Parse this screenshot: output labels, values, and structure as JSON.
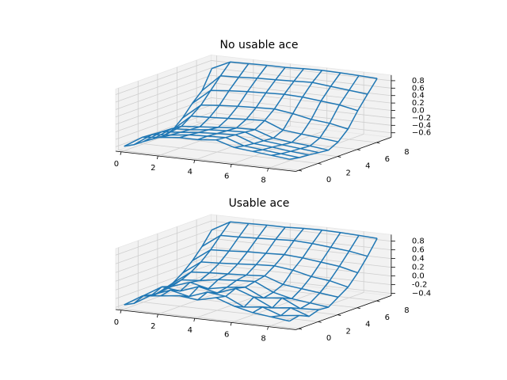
{
  "chart_data": [
    {
      "type": "wireframe",
      "title": "No usable ace",
      "color": "#1f77b4",
      "x": [
        0,
        1,
        2,
        3,
        4,
        5,
        6,
        7,
        8,
        9
      ],
      "y": [
        0,
        1,
        2,
        3,
        4,
        5,
        6,
        7,
        8,
        9
      ],
      "z": [
        [
          -0.6,
          -0.3,
          -0.25,
          -0.2,
          -0.2,
          -0.15,
          -0.3,
          -0.35,
          -0.4,
          -0.45
        ],
        [
          -0.65,
          -0.32,
          -0.28,
          -0.22,
          -0.2,
          -0.18,
          -0.35,
          -0.4,
          -0.45,
          -0.5
        ],
        [
          -0.66,
          -0.34,
          -0.3,
          -0.25,
          -0.22,
          -0.2,
          -0.38,
          -0.42,
          -0.48,
          -0.52
        ],
        [
          -0.68,
          -0.35,
          -0.32,
          -0.27,
          -0.24,
          -0.22,
          -0.4,
          -0.45,
          -0.5,
          -0.55
        ],
        [
          -0.7,
          -0.38,
          -0.34,
          -0.3,
          -0.26,
          -0.25,
          -0.42,
          -0.48,
          -0.52,
          -0.58
        ],
        [
          -0.62,
          -0.2,
          -0.18,
          -0.15,
          -0.12,
          -0.1,
          -0.3,
          -0.35,
          -0.4,
          -0.45
        ],
        [
          -0.4,
          0.0,
          0.05,
          0.08,
          0.1,
          0.12,
          0.05,
          -0.05,
          -0.1,
          -0.2
        ],
        [
          -0.1,
          0.3,
          0.35,
          0.38,
          0.4,
          0.42,
          0.4,
          0.35,
          0.3,
          0.2
        ],
        [
          0.15,
          0.6,
          0.62,
          0.65,
          0.66,
          0.68,
          0.7,
          0.65,
          0.6,
          0.55
        ],
        [
          0.65,
          0.88,
          0.89,
          0.9,
          0.9,
          0.92,
          0.93,
          0.92,
          0.9,
          0.88
        ]
      ],
      "xlim": [
        -0.3,
        9.5
      ],
      "ylim": [
        -0.3,
        9.5
      ],
      "zlim": [
        -0.72,
        0.95
      ],
      "xticks": [
        0,
        2,
        4,
        6,
        8
      ],
      "yticks": [
        0,
        2,
        4,
        6,
        8
      ],
      "zticks": [
        {
          "value": -0.6,
          "label": "−0.6"
        },
        {
          "value": -0.4,
          "label": "−0.4"
        },
        {
          "value": -0.2,
          "label": "−0.2"
        },
        {
          "value": 0.0,
          "label": "0.0"
        },
        0.2,
        0.4,
        0.6,
        0.8
      ]
    },
    {
      "type": "wireframe",
      "title": "Usable ace",
      "color": "#1f77b4",
      "x": [
        0,
        1,
        2,
        3,
        4,
        5,
        6,
        7,
        8,
        9
      ],
      "y": [
        0,
        1,
        2,
        3,
        4,
        5,
        6,
        7,
        8,
        9
      ],
      "z": [
        [
          -0.35,
          -0.1,
          -0.05,
          0.0,
          -0.05,
          0.05,
          -0.1,
          -0.2,
          -0.25,
          -0.3
        ],
        [
          -0.4,
          -0.15,
          0.0,
          -0.1,
          0.05,
          0.0,
          -0.2,
          -0.15,
          -0.3,
          -0.25
        ],
        [
          -0.3,
          -0.05,
          -0.1,
          0.05,
          -0.05,
          0.1,
          -0.05,
          -0.25,
          -0.2,
          -0.35
        ],
        [
          -0.38,
          -0.12,
          0.02,
          -0.08,
          0.0,
          0.05,
          -0.15,
          -0.1,
          -0.3,
          -0.28
        ],
        [
          -0.32,
          -0.05,
          -0.02,
          0.05,
          0.08,
          0.1,
          -0.1,
          -0.2,
          -0.25,
          -0.3
        ],
        [
          -0.25,
          0.05,
          0.08,
          0.1,
          0.12,
          0.15,
          0.0,
          -0.05,
          -0.1,
          -0.15
        ],
        [
          -0.1,
          0.2,
          0.22,
          0.25,
          0.28,
          0.3,
          0.25,
          0.15,
          0.1,
          0.0
        ],
        [
          0.1,
          0.4,
          0.42,
          0.45,
          0.46,
          0.48,
          0.45,
          0.4,
          0.35,
          0.25
        ],
        [
          0.35,
          0.65,
          0.66,
          0.68,
          0.7,
          0.72,
          0.7,
          0.66,
          0.62,
          0.55
        ],
        [
          0.65,
          0.88,
          0.89,
          0.9,
          0.9,
          0.92,
          0.93,
          0.92,
          0.9,
          0.88
        ]
      ],
      "xlim": [
        -0.3,
        9.5
      ],
      "ylim": [
        -0.3,
        9.5
      ],
      "zlim": [
        -0.45,
        0.95
      ],
      "xticks": [
        0,
        2,
        4,
        6,
        8
      ],
      "yticks": [
        0,
        2,
        4,
        6,
        8
      ],
      "zticks": [
        {
          "value": -0.4,
          "label": "−0.4"
        },
        -0.2,
        {
          "value": 0.0,
          "label": "0.0"
        },
        0.2,
        0.4,
        0.6,
        0.8
      ]
    }
  ]
}
